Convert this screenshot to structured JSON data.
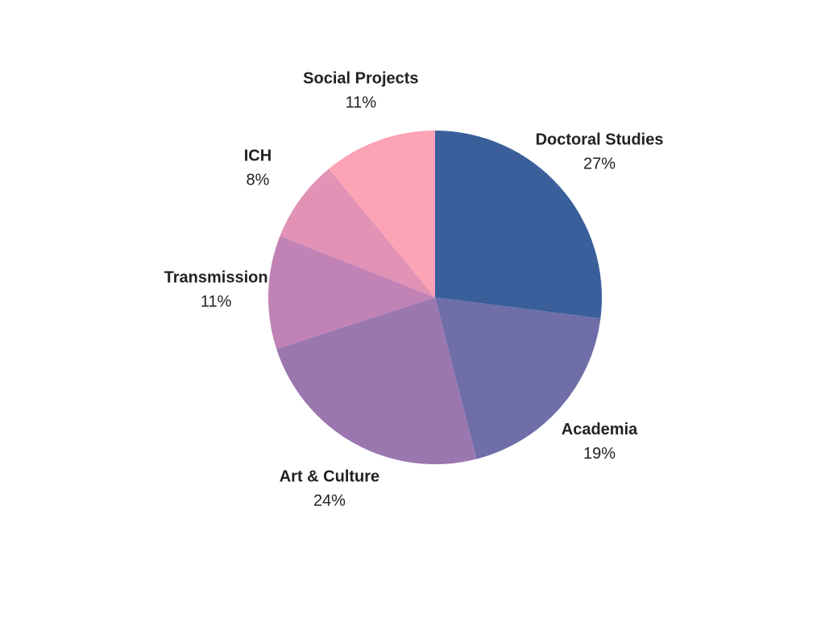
{
  "chart_data": {
    "type": "pie",
    "categories": [
      "Doctoral Studies",
      "Academia",
      "Art & Culture",
      "Transmission",
      "ICH",
      "Social Projects"
    ],
    "values": [
      27,
      19,
      24,
      11,
      8,
      11
    ],
    "value_labels": [
      "27%",
      "19%",
      "24%",
      "11%",
      "8%",
      "11%"
    ],
    "colors": [
      "#3a5f9a",
      "#6f6ea8",
      "#9b77b0",
      "#c182b5",
      "#e292b4",
      "#fca3b5"
    ]
  }
}
